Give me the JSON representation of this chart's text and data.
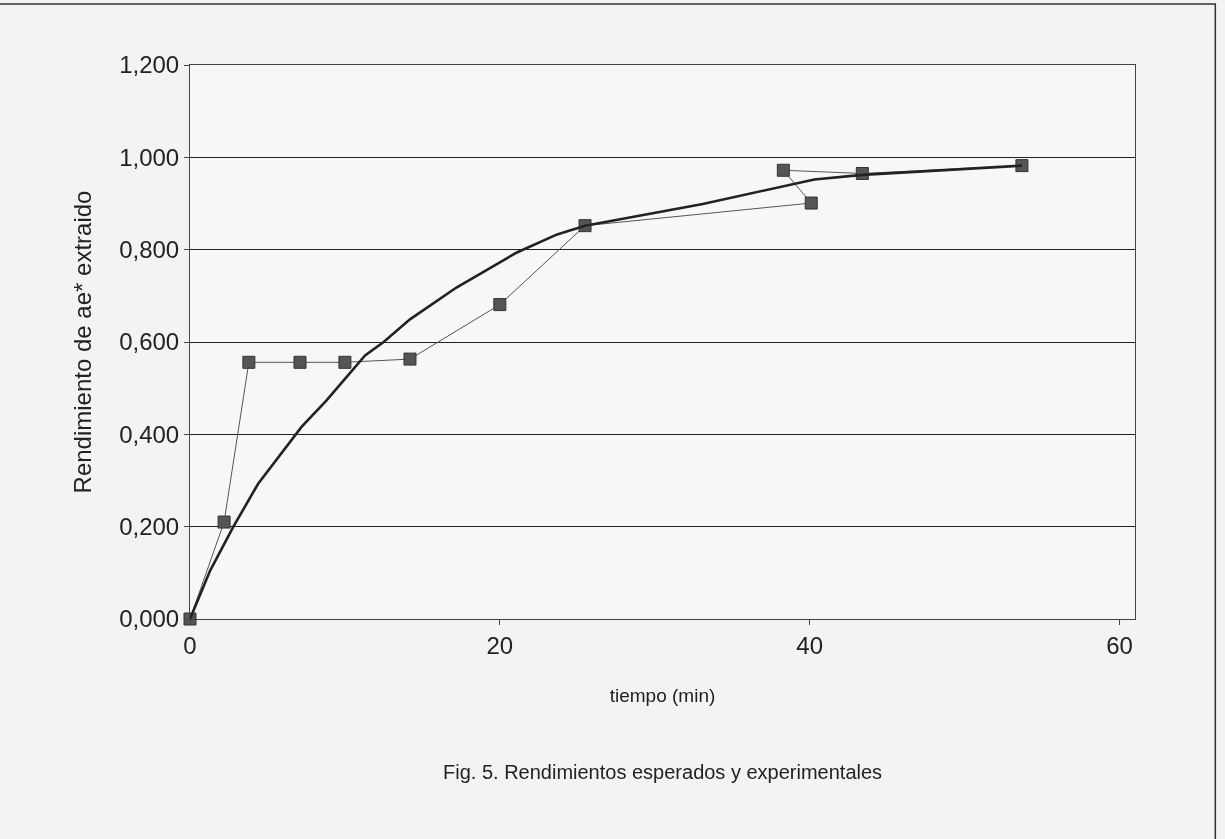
{
  "chart_data": {
    "type": "line",
    "xlabel": "tiempo (min)",
    "ylabel": "Rendimiento de ae* extraido",
    "annotations": [
      "Fig. 5. Rendimientos esperados y experimentales"
    ],
    "xlim": [
      0,
      61
    ],
    "xticks": [
      0,
      20,
      40,
      60
    ],
    "ylim": [
      0,
      1.2
    ],
    "yticks": [
      {
        "value": 0,
        "label": "0,000"
      },
      {
        "value": 0.2,
        "label": "0,200"
      },
      {
        "value": 0.4,
        "label": "0,400"
      },
      {
        "value": 0.6,
        "label": "0,600"
      },
      {
        "value": 0.8,
        "label": "0,800"
      },
      {
        "value": 1.0,
        "label": "1,000"
      },
      {
        "value": 1.2,
        "label": "1,200"
      }
    ],
    "grid": "y",
    "series": [
      {
        "color": "#555555",
        "marker": "square",
        "line_style": "solid",
        "x": [
          0,
          2.2,
          3.8,
          7.1,
          10.0,
          14.2,
          20.0,
          25.5,
          40.1,
          38.3,
          43.4,
          53.7
        ],
        "values": [
          0,
          0.21,
          0.556,
          0.556,
          0.556,
          0.563,
          0.681,
          0.852,
          0.901,
          0.972,
          0.965,
          0.982
        ]
      },
      {
        "color": "#222222",
        "marker": "none",
        "line_style": "solid",
        "x": [
          0,
          1.3,
          2.8,
          4.4,
          7.2,
          8.8,
          11.3,
          12.5,
          14.2,
          17.2,
          21.1,
          23.7,
          25.5,
          33.1,
          40.3,
          43.4,
          53.7
        ],
        "values": [
          0,
          0.105,
          0.2,
          0.293,
          0.416,
          0.473,
          0.571,
          0.6,
          0.649,
          0.718,
          0.794,
          0.833,
          0.852,
          0.899,
          0.952,
          0.962,
          0.982
        ]
      }
    ]
  }
}
